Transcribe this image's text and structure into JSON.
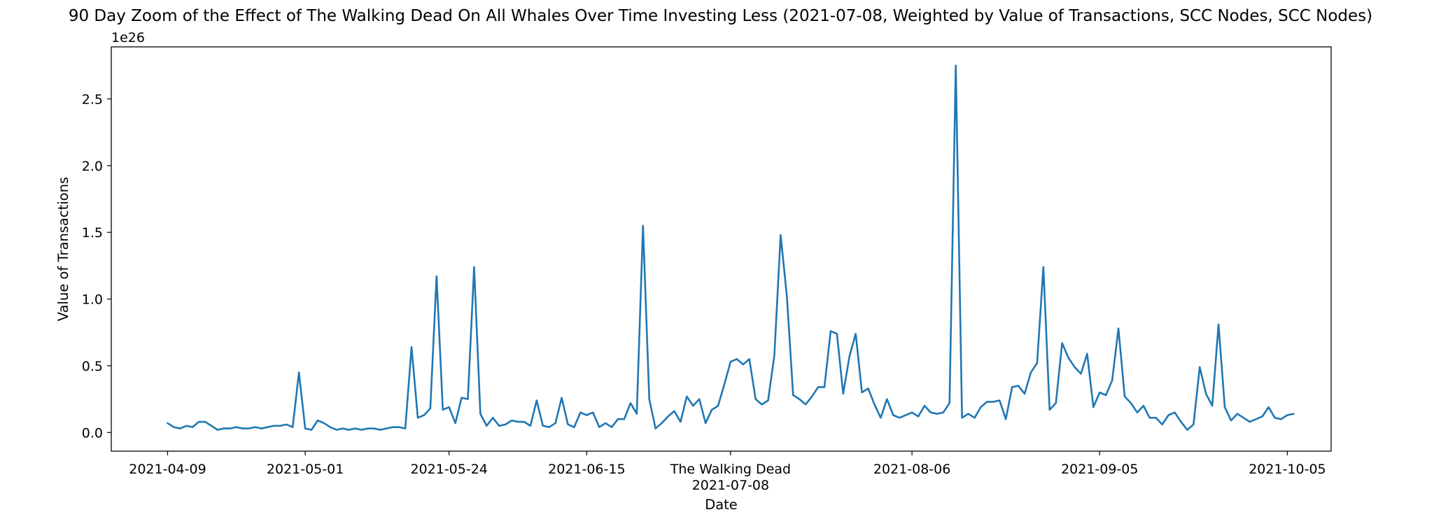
{
  "chart_data": {
    "type": "line",
    "title": "90 Day Zoom of the Effect of The Walking Dead On All Whales Over Time Investing Less (2021-07-08, Weighted by Value of Transactions, SCC Nodes, SCC Nodes)",
    "xlabel": "Date",
    "ylabel": "Value of Transactions",
    "y_offset_label": "1e26",
    "ylim": [
      -0.14,
      2.89
    ],
    "xlim": [
      "2021-03-31",
      "2021-10-12"
    ],
    "grid": false,
    "legend": "none",
    "line_color": "#1f77b4",
    "x_tick_labels": [
      {
        "date": "2021-04-09",
        "label": "2021-04-09"
      },
      {
        "date": "2021-05-01",
        "label": "2021-05-01"
      },
      {
        "date": "2021-05-24",
        "label": "2021-05-24"
      },
      {
        "date": "2021-06-15",
        "label": "2021-06-15"
      },
      {
        "date": "2021-07-08",
        "label": "2021-07-08"
      },
      {
        "date": "2021-08-06",
        "label": "2021-08-06"
      },
      {
        "date": "2021-09-05",
        "label": "2021-09-05"
      },
      {
        "date": "2021-10-05",
        "label": "2021-10-05"
      }
    ],
    "y_tick_labels": [
      {
        "value": 0.0,
        "label": "0.0"
      },
      {
        "value": 0.5,
        "label": "0.5"
      },
      {
        "value": 1.0,
        "label": "1.0"
      },
      {
        "value": 1.5,
        "label": "1.5"
      },
      {
        "value": 2.0,
        "label": "2.0"
      },
      {
        "value": 2.5,
        "label": "2.5"
      }
    ],
    "annotation": {
      "date": "2021-07-08",
      "label": "The Walking Dead"
    },
    "series": [
      {
        "x": [
          "2021-04-09",
          "2021-04-10",
          "2021-04-11",
          "2021-04-12",
          "2021-04-13",
          "2021-04-14",
          "2021-04-15",
          "2021-04-16",
          "2021-04-17",
          "2021-04-18",
          "2021-04-19",
          "2021-04-20",
          "2021-04-21",
          "2021-04-22",
          "2021-04-23",
          "2021-04-24",
          "2021-04-25",
          "2021-04-26",
          "2021-04-27",
          "2021-04-28",
          "2021-04-29",
          "2021-04-30",
          "2021-05-01",
          "2021-05-02",
          "2021-05-03",
          "2021-05-04",
          "2021-05-05",
          "2021-05-06",
          "2021-05-07",
          "2021-05-08",
          "2021-05-09",
          "2021-05-10",
          "2021-05-11",
          "2021-05-12",
          "2021-05-13",
          "2021-05-14",
          "2021-05-15",
          "2021-05-16",
          "2021-05-17",
          "2021-05-18",
          "2021-05-19",
          "2021-05-20",
          "2021-05-21",
          "2021-05-22",
          "2021-05-23",
          "2021-05-24",
          "2021-05-25",
          "2021-05-26",
          "2021-05-27",
          "2021-05-28",
          "2021-05-29",
          "2021-05-30",
          "2021-05-31",
          "2021-06-01",
          "2021-06-02",
          "2021-06-03",
          "2021-06-04",
          "2021-06-05",
          "2021-06-06",
          "2021-06-07",
          "2021-06-08",
          "2021-06-09",
          "2021-06-10",
          "2021-06-11",
          "2021-06-12",
          "2021-06-13",
          "2021-06-14",
          "2021-06-15",
          "2021-06-16",
          "2021-06-17",
          "2021-06-18",
          "2021-06-19",
          "2021-06-20",
          "2021-06-21",
          "2021-06-22",
          "2021-06-23",
          "2021-06-24",
          "2021-06-25",
          "2021-06-26",
          "2021-06-27",
          "2021-06-28",
          "2021-06-29",
          "2021-06-30",
          "2021-07-01",
          "2021-07-02",
          "2021-07-03",
          "2021-07-04",
          "2021-07-05",
          "2021-07-06",
          "2021-07-07",
          "2021-07-08",
          "2021-07-09",
          "2021-07-10",
          "2021-07-11",
          "2021-07-12",
          "2021-07-13",
          "2021-07-14",
          "2021-07-15",
          "2021-07-16",
          "2021-07-17",
          "2021-07-18",
          "2021-07-19",
          "2021-07-20",
          "2021-07-21",
          "2021-07-22",
          "2021-07-23",
          "2021-07-24",
          "2021-07-25",
          "2021-07-26",
          "2021-07-27",
          "2021-07-28",
          "2021-07-29",
          "2021-07-30",
          "2021-07-31",
          "2021-08-01",
          "2021-08-02",
          "2021-08-03",
          "2021-08-04",
          "2021-08-05",
          "2021-08-06",
          "2021-08-07",
          "2021-08-08",
          "2021-08-09",
          "2021-08-10",
          "2021-08-11",
          "2021-08-12",
          "2021-08-13",
          "2021-08-14",
          "2021-08-15",
          "2021-08-16",
          "2021-08-17",
          "2021-08-18",
          "2021-08-19",
          "2021-08-20",
          "2021-08-21",
          "2021-08-22",
          "2021-08-23",
          "2021-08-24",
          "2021-08-25",
          "2021-08-26",
          "2021-08-27",
          "2021-08-28",
          "2021-08-29",
          "2021-08-30",
          "2021-08-31",
          "2021-09-01",
          "2021-09-02",
          "2021-09-03",
          "2021-09-04",
          "2021-09-05",
          "2021-09-06",
          "2021-09-07",
          "2021-09-08",
          "2021-09-09",
          "2021-09-10",
          "2021-09-11",
          "2021-09-12",
          "2021-09-13",
          "2021-09-14",
          "2021-09-15",
          "2021-09-16",
          "2021-09-17",
          "2021-09-18",
          "2021-09-19",
          "2021-09-20",
          "2021-09-21",
          "2021-09-22",
          "2021-09-23",
          "2021-09-24",
          "2021-09-25",
          "2021-09-26",
          "2021-09-27",
          "2021-09-28",
          "2021-09-29",
          "2021-09-30",
          "2021-10-01",
          "2021-10-02",
          "2021-10-03",
          "2021-10-04",
          "2021-10-05",
          "2021-10-06"
        ],
        "y": [
          0.07,
          0.04,
          0.03,
          0.05,
          0.04,
          0.08,
          0.08,
          0.05,
          0.02,
          0.03,
          0.03,
          0.04,
          0.03,
          0.03,
          0.04,
          0.03,
          0.04,
          0.05,
          0.05,
          0.06,
          0.04,
          0.45,
          0.03,
          0.02,
          0.09,
          0.07,
          0.04,
          0.02,
          0.03,
          0.02,
          0.03,
          0.02,
          0.03,
          0.03,
          0.02,
          0.03,
          0.04,
          0.04,
          0.03,
          0.64,
          0.11,
          0.13,
          0.18,
          1.17,
          0.17,
          0.19,
          0.07,
          0.26,
          0.25,
          1.24,
          0.14,
          0.05,
          0.11,
          0.05,
          0.06,
          0.09,
          0.08,
          0.08,
          0.05,
          0.24,
          0.05,
          0.04,
          0.07,
          0.26,
          0.06,
          0.04,
          0.15,
          0.13,
          0.15,
          0.04,
          0.07,
          0.04,
          0.1,
          0.1,
          0.22,
          0.14,
          1.55,
          0.25,
          0.03,
          0.07,
          0.12,
          0.16,
          0.08,
          0.27,
          0.2,
          0.25,
          0.07,
          0.17,
          0.2,
          0.36,
          0.53,
          0.55,
          0.51,
          0.55,
          0.25,
          0.21,
          0.24,
          0.58,
          1.48,
          1.02,
          0.28,
          0.25,
          0.21,
          0.27,
          0.34,
          0.34,
          0.76,
          0.74,
          0.29,
          0.57,
          0.74,
          0.3,
          0.33,
          0.21,
          0.11,
          0.25,
          0.13,
          0.11,
          0.13,
          0.15,
          0.12,
          0.2,
          0.15,
          0.14,
          0.15,
          0.22,
          2.75,
          0.11,
          0.14,
          0.11,
          0.19,
          0.23,
          0.23,
          0.24,
          0.1,
          0.34,
          0.35,
          0.29,
          0.45,
          0.52,
          1.24,
          0.17,
          0.22,
          0.67,
          0.56,
          0.49,
          0.44,
          0.59,
          0.19,
          0.3,
          0.28,
          0.39,
          0.78,
          0.27,
          0.22,
          0.15,
          0.2,
          0.11,
          0.11,
          0.06,
          0.13,
          0.15,
          0.08,
          0.02,
          0.06,
          0.49,
          0.29,
          0.2,
          0.81,
          0.19,
          0.09,
          0.14,
          0.11,
          0.08,
          0.1,
          0.12,
          0.19,
          0.11,
          0.1,
          0.13,
          0.14
        ]
      }
    ]
  }
}
